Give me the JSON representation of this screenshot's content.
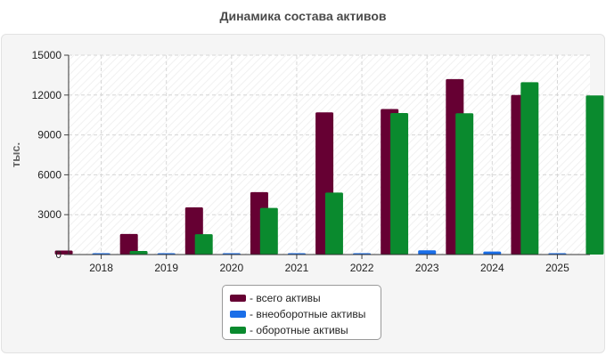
{
  "chart_data": {
    "type": "bar",
    "title": "Динамика состава активов",
    "ylabel": "тыс.",
    "xlabel": "",
    "categories": [
      "2018",
      "2019",
      "2020",
      "2021",
      "2022",
      "2023",
      "2024",
      "2025"
    ],
    "ylim": [
      0,
      15000
    ],
    "yticks": [
      "0",
      "3000",
      "6000",
      "9000",
      "12000",
      "15000"
    ],
    "grid": true,
    "legend_position": "bottom-center",
    "series": [
      {
        "name": "- всего активы",
        "color": "#660033",
        "values": [
          300,
          1550,
          3550,
          4700,
          10700,
          10950,
          13200,
          12000
        ]
      },
      {
        "name": "- внеоборотные активы",
        "color": "#1a6ee8",
        "values": [
          30,
          20,
          40,
          40,
          50,
          320,
          230,
          30
        ]
      },
      {
        "name": "- оборотные активы",
        "color": "#0a8a2e",
        "values": [
          270,
          1530,
          3510,
          4660,
          10650,
          10630,
          12970,
          11970
        ]
      }
    ]
  }
}
